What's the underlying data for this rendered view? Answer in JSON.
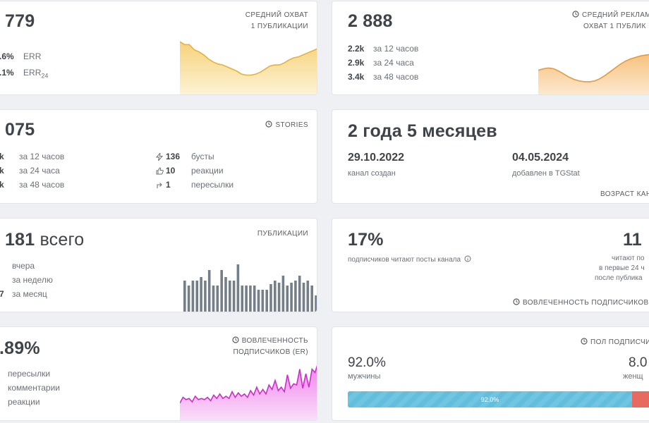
{
  "reach_card": {
    "value": "779",
    "label_line1": "СРЕДНИЙ ОХВАТ",
    "label_line2": "1 ПУБЛИКАЦИИ",
    "err": {
      "value": ".6%",
      "label": "ERR"
    },
    "err24": {
      "value": ".1%",
      "label": "ERR",
      "sub": "24"
    }
  },
  "ad_reach_card": {
    "value": "2 888",
    "label_line1": "СРЕДНИЙ РЕКЛАМ",
    "label_line2": "ОХВАТ 1 ПУБЛИК",
    "rows": [
      {
        "value": "2.2k",
        "label": "за 12 часов"
      },
      {
        "value": "2.9k",
        "label": "за 24 часа"
      },
      {
        "value": "3.4k",
        "label": "за 48 часов"
      }
    ]
  },
  "stories_card": {
    "value": "075",
    "label": "STORIES",
    "rows": [
      {
        "value": "k",
        "label": "за 12 часов"
      },
      {
        "value": "k",
        "label": "за 24 часа"
      },
      {
        "value": "k",
        "label": "за 48 часов"
      }
    ],
    "stats": [
      {
        "icon": "lightning-icon",
        "value": "136",
        "label": "бусты"
      },
      {
        "icon": "thumbs-up-icon",
        "value": "10",
        "label": "реакции"
      },
      {
        "icon": "share-arrow-icon",
        "value": "1",
        "label": "пересылки"
      }
    ]
  },
  "age_card": {
    "value": "2 года 5 месяцев",
    "created": {
      "date": "29.10.2022",
      "label": "канал создан"
    },
    "added": {
      "date": "04.05.2024",
      "label": "добавлен в TGStat"
    },
    "footer": "ВОЗРАСТ КАН"
  },
  "posts_card": {
    "value": "181",
    "value_suffix": "всего",
    "label": "ПУБЛИКАЦИИ",
    "rows": [
      {
        "value": "",
        "label": "вчера"
      },
      {
        "value": "",
        "label": "за неделю"
      },
      {
        "value": "7",
        "label": "за месяц"
      }
    ]
  },
  "readers_card": {
    "left_value": "17%",
    "left_label": "подписчиков читают посты канала",
    "right_value": "11",
    "right_label_lines": [
      "читают по",
      "в первые 24 ч",
      "после публика"
    ],
    "footer": "ВОВЛЕЧЕННОСТЬ ПОДПИСЧИКОВ"
  },
  "er_card": {
    "value": ".89%",
    "label_line1": "ВОВЛЕЧЕННОСТЬ",
    "label_line2": "ПОДПИСЧИКОВ (ER)",
    "rows": [
      "пересылки",
      "комментарии",
      "реакции"
    ]
  },
  "gender_card": {
    "label": "ПОЛ ПОДПИСЧИ",
    "male": {
      "value": "92.0%",
      "label": "мужчины",
      "bar_label": "92.0%",
      "share": 0.92
    },
    "female": {
      "value": "8.0",
      "label": "женщ",
      "share": 0.08
    }
  },
  "colors": {
    "yellow": "#f5c34a",
    "orange": "#f0a546",
    "bars": "#757f89",
    "pink": "#d838d6",
    "blue": "#62bedc",
    "red": "#e8695f"
  },
  "chart_data": [
    {
      "type": "area",
      "name": "reach-sparkline",
      "values": [
        100,
        94,
        94,
        84,
        80,
        74,
        66,
        60,
        56,
        54,
        50,
        46,
        42,
        36,
        34,
        34,
        36,
        40,
        46,
        52,
        54,
        54,
        58,
        64,
        68,
        70,
        74,
        78,
        82,
        86
      ],
      "ylim": [
        0,
        100
      ]
    },
    {
      "type": "area",
      "name": "ad-reach-sparkline",
      "values": [
        58,
        62,
        64,
        62,
        56,
        48,
        40,
        34,
        30,
        28,
        28,
        30,
        36,
        44,
        54,
        64,
        74,
        82,
        88,
        92,
        96,
        98,
        100
      ],
      "ylim": [
        0,
        100
      ]
    },
    {
      "type": "bar",
      "name": "posts-histogram",
      "values": [
        45,
        38,
        45,
        45,
        50,
        45,
        60,
        38,
        38,
        60,
        50,
        45,
        45,
        68,
        38,
        38,
        38,
        38,
        32,
        32,
        32,
        40,
        45,
        42,
        52,
        38,
        42,
        45,
        52,
        42,
        45,
        38,
        24
      ],
      "ylim": [
        0,
        70
      ]
    },
    {
      "type": "area",
      "name": "er-sparkline",
      "values": [
        28,
        38,
        34,
        36,
        30,
        40,
        34,
        36,
        34,
        38,
        32,
        42,
        36,
        44,
        36,
        40,
        36,
        48,
        38,
        46,
        40,
        44,
        38,
        50,
        42,
        56,
        44,
        52,
        44,
        60,
        52,
        68,
        50,
        56,
        48,
        78,
        54,
        62,
        60,
        88,
        54,
        80,
        56,
        88,
        82,
        100
      ],
      "ylim": [
        0,
        100
      ]
    }
  ]
}
